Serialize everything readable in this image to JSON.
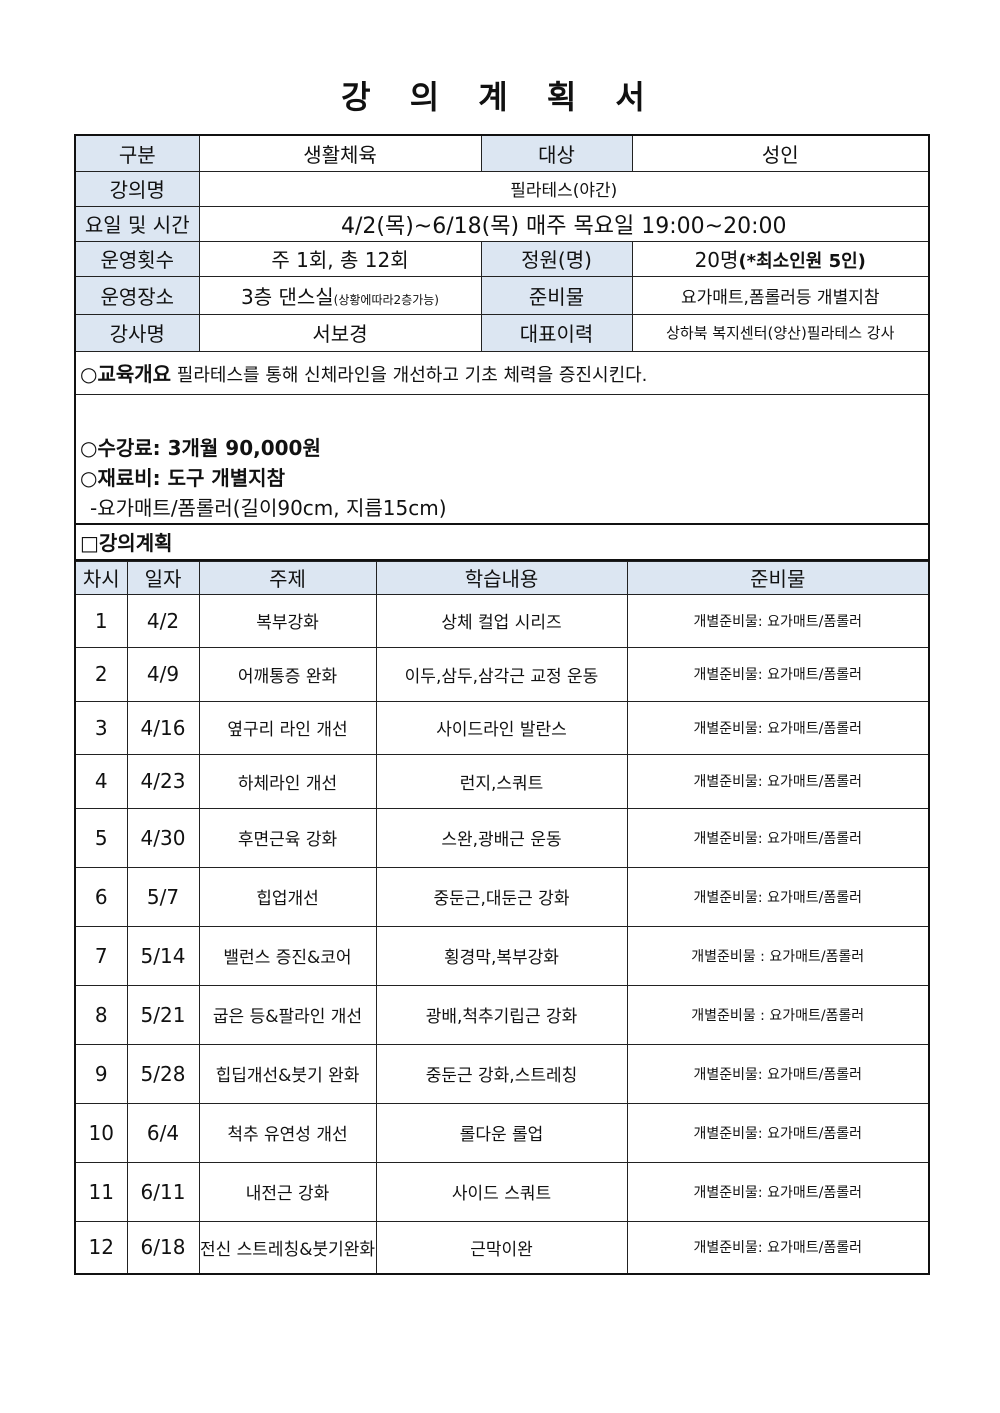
{
  "title": "강 의 계 획 서",
  "info": {
    "category_label": "구분",
    "category": "생활체육",
    "target_label": "대상",
    "target": "성인",
    "course_label": "강의명",
    "course": "필라테스(야간)",
    "schedule_label": "요일 및 시간",
    "schedule": "4/2(목)~6/18(목) 매주 목요일 19:00~20:00",
    "count_label": "운영횟수",
    "count": "주 1회, 총 12회",
    "capacity_label": "정원(명)",
    "capacity": "20명",
    "capacity_note": "(*최소인원 5인)",
    "place_label": "운영장소",
    "place": "3층 댄스실",
    "place_note": "(상황에따라2층가능)",
    "supplies_label": "준비물",
    "supplies": "요가매트,폼롤러등 개별지참",
    "instructor_label": "강사명",
    "instructor": "서보경",
    "career_label": "대표이력",
    "career": "상하북 복지센터(양산)필라테스 강사"
  },
  "overview": {
    "label": "○교육개요",
    "text": "필라테스를 통해 신체라인을 개선하고 기초 체력을 증진시킨다."
  },
  "fees": {
    "tuition": "○수강료: 3개월 90,000원",
    "materials": "○재료비: 도구 개별지참",
    "materials_detail": "-요가매트/폼롤러(길이90cm, 지름15cm)"
  },
  "plan": {
    "label": "□강의계획",
    "headers": [
      "차시",
      "일자",
      "주제",
      "학습내용",
      "준비물"
    ],
    "rows": [
      {
        "no": "1",
        "date": "4/2",
        "topic": "복부강화",
        "content": "상체 컬업 시리즈",
        "prep": "개별준비물: 요가매트/폼롤러"
      },
      {
        "no": "2",
        "date": "4/9",
        "topic": "어깨통증 완화",
        "content": "이두,삼두,삼각근 교정 운동",
        "prep": "개별준비물: 요가매트/폼롤러"
      },
      {
        "no": "3",
        "date": "4/16",
        "topic": "옆구리 라인 개선",
        "content": "사이드라인 발란스",
        "prep": "개별준비물: 요가매트/폼롤러"
      },
      {
        "no": "4",
        "date": "4/23",
        "topic": "하체라인 개선",
        "content": "런지,스쿼트",
        "prep": "개별준비물: 요가매트/폼롤러"
      },
      {
        "no": "5",
        "date": "4/30",
        "topic": "후면근육 강화",
        "content": "스완,광배근 운동",
        "prep": "개별준비물: 요가매트/폼롤러"
      },
      {
        "no": "6",
        "date": "5/7",
        "topic": "힙업개선",
        "content": "중둔근,대둔근 강화",
        "prep": "개별준비물: 요가매트/폼롤러"
      },
      {
        "no": "7",
        "date": "5/14",
        "topic": "밸런스 증진&코어",
        "content": "횡경막,복부강화",
        "prep": "개별준비물 : 요가매트/폼롤러"
      },
      {
        "no": "8",
        "date": "5/21",
        "topic": "굽은 등&팔라인 개선",
        "content": "광배,척추기립근 강화",
        "prep": "개별준비물 : 요가매트/폼롤러"
      },
      {
        "no": "9",
        "date": "5/28",
        "topic": "힙딥개선&붓기 완화",
        "content": "중둔근 강화,스트레칭",
        "prep": "개별준비물: 요가매트/폼롤러"
      },
      {
        "no": "10",
        "date": "6/4",
        "topic": "척추 유연성 개선",
        "content": "롤다운 롤업",
        "prep": "개별준비물: 요가매트/폼롤러"
      },
      {
        "no": "11",
        "date": "6/11",
        "topic": "내전근 강화",
        "content": "사이드 스쿼트",
        "prep": "개별준비물: 요가매트/폼롤러"
      },
      {
        "no": "12",
        "date": "6/18",
        "topic": "전신 스트레칭&붓기완화",
        "content": "근막이완",
        "prep": "개별준비물: 요가매트/폼롤러"
      }
    ]
  },
  "colors": {
    "header_bg": "#dce6f2"
  }
}
